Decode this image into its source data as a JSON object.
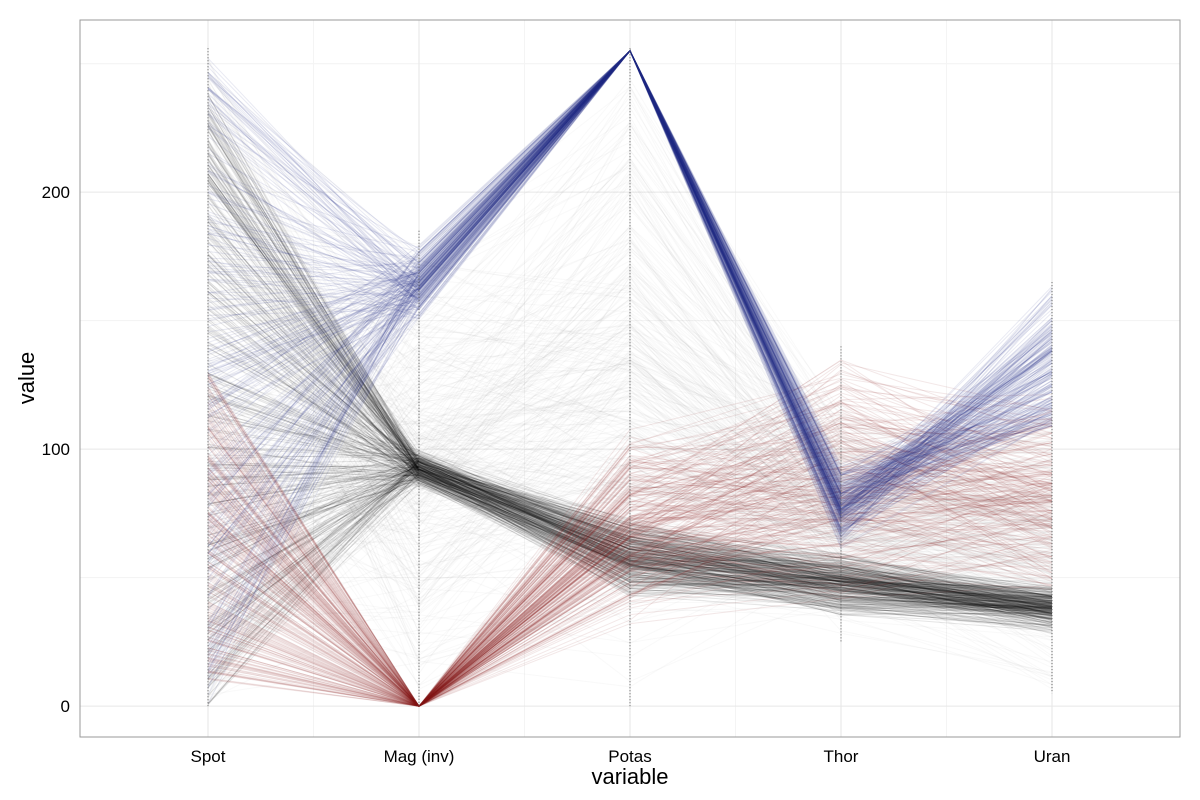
{
  "chart_data": {
    "type": "parallel-coordinates",
    "xlabel": "variable",
    "ylabel": "value",
    "categories": [
      "Spot",
      "Mag (inv)",
      "Potas",
      "Thor",
      "Uran"
    ],
    "ylim": [
      -12,
      267
    ],
    "yticks": [
      0,
      100,
      200
    ],
    "grid": true,
    "legend": "none",
    "colors": {
      "blue": "#27318c",
      "red": "#8e1b1b",
      "black": "#000000",
      "grey": "#9a9a9a",
      "grid": "#e6e6e6",
      "border": "#999999"
    },
    "series": [
      {
        "color": "blue",
        "line_count": 220,
        "spot": [
          0,
          256
        ],
        "mag_inv": [
          150,
          180
        ],
        "potas": [
          255,
          255
        ],
        "thor": [
          60,
          95
        ],
        "uran": [
          85,
          165
        ]
      },
      {
        "color": "red",
        "line_count": 220,
        "spot": [
          10,
          130
        ],
        "mag_inv": [
          0,
          0
        ],
        "potas": [
          30,
          110
        ],
        "thor": [
          40,
          140
        ],
        "uran": [
          40,
          125
        ]
      },
      {
        "color": "black",
        "line_count": 260,
        "spot": [
          0,
          240
        ],
        "mag_inv": [
          85,
          100
        ],
        "potas": [
          40,
          75
        ],
        "thor": [
          35,
          60
        ],
        "uran": [
          28,
          48
        ]
      },
      {
        "color": "grey",
        "line_count": 300,
        "spot": [
          0,
          256
        ],
        "mag_inv": [
          0,
          185
        ],
        "potas": [
          0,
          256
        ],
        "thor": [
          25,
          120
        ],
        "uran": [
          5,
          120
        ]
      }
    ]
  }
}
